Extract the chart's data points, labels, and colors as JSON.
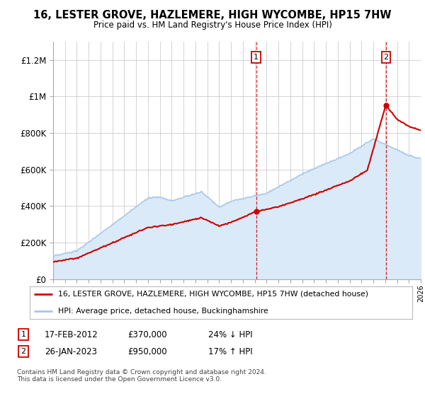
{
  "title": "16, LESTER GROVE, HAZLEMERE, HIGH WYCOMBE, HP15 7HW",
  "subtitle": "Price paid vs. HM Land Registry's House Price Index (HPI)",
  "ylim": [
    0,
    1300000
  ],
  "yticks": [
    0,
    200000,
    400000,
    600000,
    800000,
    1000000,
    1200000
  ],
  "ytick_labels": [
    "£0",
    "£200K",
    "£400K",
    "£600K",
    "£800K",
    "£1M",
    "£1.2M"
  ],
  "sale1_year": 2012.12,
  "sale1_price": 370000,
  "sale2_year": 2023.07,
  "sale2_price": 950000,
  "hpi_color": "#a8c8e8",
  "hpi_fill_color": "#daeaf8",
  "sale_color": "#cc0000",
  "vline_color": "#cc0000",
  "legend_sale_label": "16, LESTER GROVE, HAZLEMERE, HIGH WYCOMBE, HP15 7HW (detached house)",
  "legend_hpi_label": "HPI: Average price, detached house, Buckinghamshire",
  "table_entries": [
    {
      "num": "1",
      "date": "17-FEB-2012",
      "price": "£370,000",
      "note": "24% ↓ HPI"
    },
    {
      "num": "2",
      "date": "26-JAN-2023",
      "price": "£950,000",
      "note": "17% ↑ HPI"
    }
  ],
  "footer": "Contains HM Land Registry data © Crown copyright and database right 2024.\nThis data is licensed under the Open Government Licence v3.0.",
  "background_color": "#ffffff",
  "grid_color": "#cccccc"
}
